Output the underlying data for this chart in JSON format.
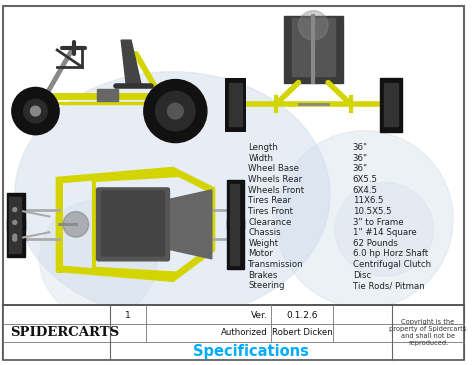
{
  "bg_color": "#ffffff",
  "border_color": "#444444",
  "title_text": "Specifications",
  "title_color": "#00aaff",
  "brand_text": "Spidercarts",
  "version_label": "Ver.",
  "version_value": "0.1.2.6",
  "authorized_label": "Authorized",
  "authorized_value": "Robert Dicken",
  "sheet_number": "1",
  "copyright_text": "Copyright is the\nproperty of Spidercarts\nand shall not be\nreproduced.",
  "specs": [
    [
      "Length",
      "36\""
    ],
    [
      "Width",
      "36\""
    ],
    [
      "Wheel Base",
      "36\""
    ],
    [
      "Wheels Rear",
      "6X5.5"
    ],
    [
      "Wheels Front",
      "6X4.5"
    ],
    [
      "Tires Rear",
      "11X6.5"
    ],
    [
      "Tires Front",
      "10.5X5.5"
    ],
    [
      "Clearance",
      "3\" to Frame"
    ],
    [
      "Chassis",
      "1\" #14 Square"
    ],
    [
      "Weight",
      "62 Pounds"
    ],
    [
      "Motor",
      "6.0 hp Horz Shaft"
    ],
    [
      "Transmission",
      "Centrifugal Clutch"
    ],
    [
      "Brakes",
      "Disc"
    ],
    [
      "Steering",
      "Tie Rods/ Pitman"
    ]
  ],
  "spec_text_color": "#222222",
  "frame_yellow": "#d4d400",
  "wheel_black": "#111111",
  "seat_color": "#555555",
  "frame_gray": "#888888",
  "watermark_color": "#d0dcea"
}
